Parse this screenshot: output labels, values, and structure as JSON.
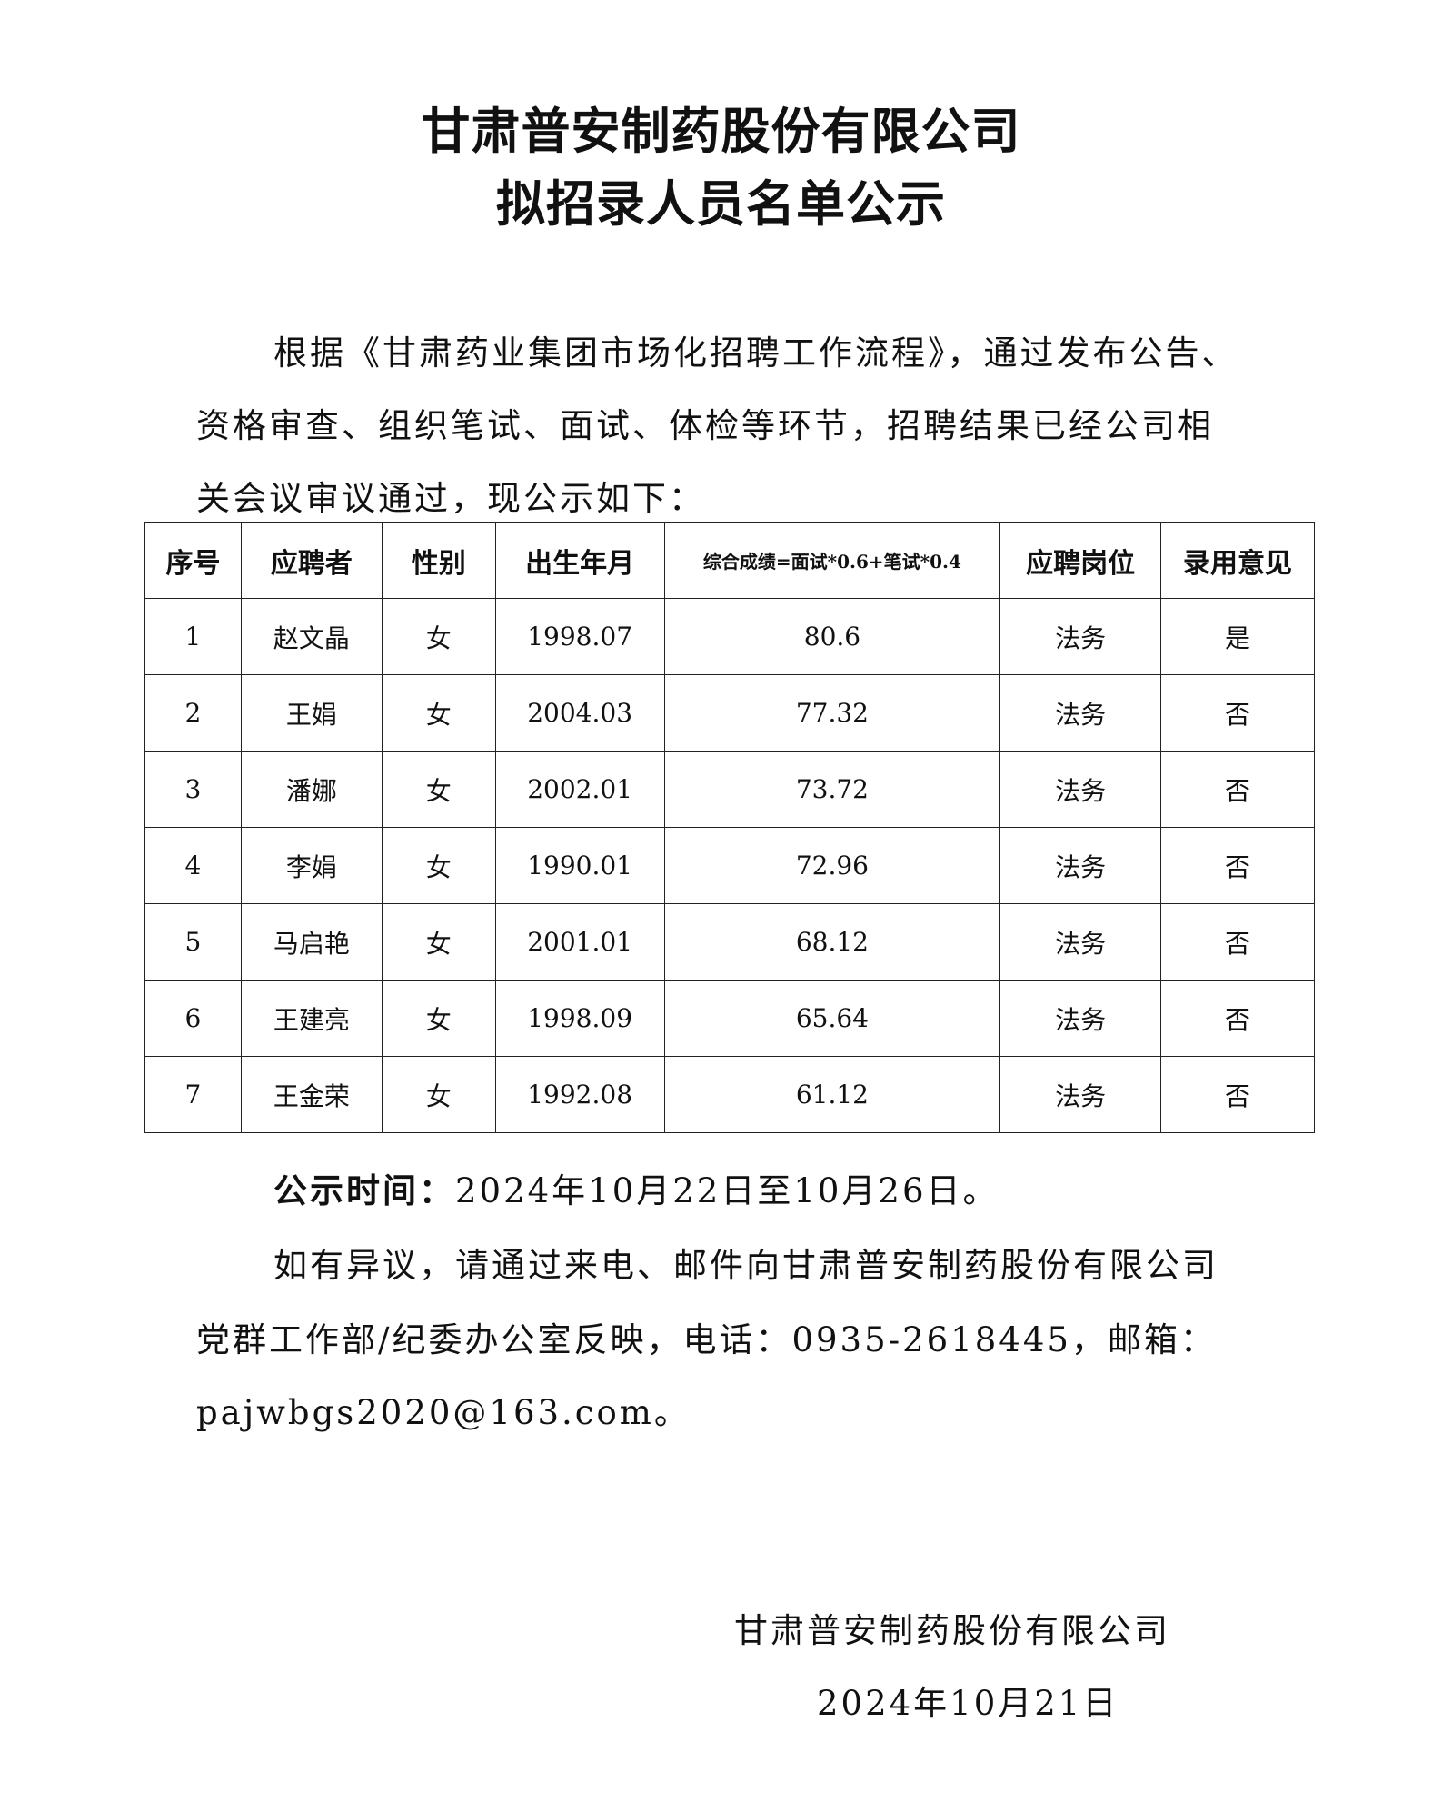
{
  "title": {
    "line1": "甘肃普安制药股份有限公司",
    "line2": "拟招录人员名单公示"
  },
  "intro": {
    "line1": "根据《甘肃药业集团市场化招聘工作流程》，通过发布公告、",
    "line2": "资格审查、组织笔试、面试、体检等环节，招聘结果已经公司相",
    "line3": "关会议审议通过，现公示如下："
  },
  "table": {
    "headers": [
      "序号",
      "应聘者",
      "性别",
      "出生年月",
      "综合成绩=面试*0.6+笔试*0.4",
      "应聘岗位",
      "录用意见"
    ],
    "rows": [
      [
        "1",
        "赵文晶",
        "女",
        "1998.07",
        "80.6",
        "法务",
        "是"
      ],
      [
        "2",
        "王娟",
        "女",
        "2004.03",
        "77.32",
        "法务",
        "否"
      ],
      [
        "3",
        "潘娜",
        "女",
        "2002.01",
        "73.72",
        "法务",
        "否"
      ],
      [
        "4",
        "李娟",
        "女",
        "1990.01",
        "72.96",
        "法务",
        "否"
      ],
      [
        "5",
        "马启艳",
        "女",
        "2001.01",
        "68.12",
        "法务",
        "否"
      ],
      [
        "6",
        "王建亮",
        "女",
        "1998.09",
        "65.64",
        "法务",
        "否"
      ],
      [
        "7",
        "王金荣",
        "女",
        "1992.08",
        "61.12",
        "法务",
        "否"
      ]
    ]
  },
  "notice": {
    "period_label": "公示时间：",
    "period_value": "2024年10月22日至10月26日。",
    "line1": "如有异议，请通过来电、邮件向甘肃普安制药股份有限公司",
    "line2": "党群工作部/纪委办公室反映，电话：0935-2618445，邮箱：",
    "line3": "pajwbgs2020@163.com。"
  },
  "signature": {
    "org": "甘肃普安制药股份有限公司",
    "date": "2024年10月21日"
  }
}
